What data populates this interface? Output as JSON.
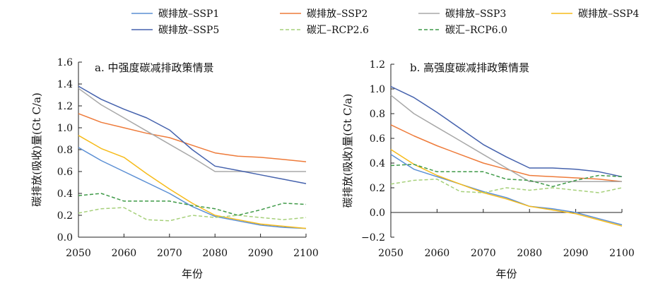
{
  "legend": [
    {
      "name": "碳排放–SSP1",
      "color": "#5b8fd4",
      "dash": false
    },
    {
      "name": "碳排放–SSP2",
      "color": "#ee7b3a",
      "dash": false
    },
    {
      "name": "碳排放–SSP3",
      "color": "#a8a8a8",
      "dash": false
    },
    {
      "name": "碳排放–SSP4",
      "color": "#f6bb1a",
      "dash": false
    },
    {
      "name": "碳排放–SSP5",
      "color": "#4562ad",
      "dash": false
    },
    {
      "name": "碳汇–RCP2.6",
      "color": "#a6d07a",
      "dash": true
    },
    {
      "name": "碳汇–RCP6.0",
      "color": "#3f9a48",
      "dash": true
    }
  ],
  "chart_data": [
    {
      "type": "line",
      "title": "a. 中强度碳减排政策情景",
      "xlabel": "年份",
      "ylabel": "碳排放(吸收)量(Gt C/a)",
      "xlim": [
        2050,
        2100
      ],
      "ylim": [
        0,
        1.6
      ],
      "xticks": [
        2050,
        2060,
        2070,
        2080,
        2090,
        2100
      ],
      "yticks": [
        "0.0",
        "0.2",
        "0.4",
        "0.6",
        "0.8",
        "1.0",
        "1.2",
        "1.4",
        "1.6"
      ],
      "series": [
        {
          "name": "碳排放–SSP1",
          "x": [
            2050,
            2055,
            2060,
            2065,
            2070,
            2075,
            2080,
            2085,
            2090,
            2095,
            2100
          ],
          "y": [
            0.82,
            0.7,
            0.6,
            0.5,
            0.4,
            0.28,
            0.19,
            0.15,
            0.11,
            0.09,
            0.08
          ]
        },
        {
          "name": "碳排放–SSP2",
          "x": [
            2050,
            2055,
            2060,
            2065,
            2070,
            2075,
            2080,
            2085,
            2090,
            2095,
            2100
          ],
          "y": [
            1.13,
            1.05,
            1.0,
            0.95,
            0.91,
            0.84,
            0.77,
            0.74,
            0.73,
            0.71,
            0.69
          ]
        },
        {
          "name": "碳排放–SSP3",
          "x": [
            2050,
            2055,
            2060,
            2065,
            2070,
            2075,
            2080,
            2085,
            2090,
            2095,
            2100
          ],
          "y": [
            1.36,
            1.21,
            1.09,
            0.97,
            0.85,
            0.73,
            0.6,
            0.6,
            0.6,
            0.6,
            0.6
          ]
        },
        {
          "name": "碳排放–SSP4",
          "x": [
            2050,
            2055,
            2060,
            2065,
            2070,
            2075,
            2080,
            2085,
            2090,
            2095,
            2100
          ],
          "y": [
            0.93,
            0.81,
            0.73,
            0.58,
            0.44,
            0.31,
            0.2,
            0.16,
            0.12,
            0.1,
            0.08
          ]
        },
        {
          "name": "碳排放–SSP5",
          "x": [
            2050,
            2055,
            2060,
            2065,
            2070,
            2075,
            2080,
            2085,
            2090,
            2095,
            2100
          ],
          "y": [
            1.38,
            1.26,
            1.17,
            1.09,
            0.98,
            0.8,
            0.65,
            0.61,
            0.57,
            0.53,
            0.49
          ]
        },
        {
          "name": "碳汇–RCP2.6",
          "x": [
            2050,
            2055,
            2060,
            2065,
            2070,
            2075,
            2080,
            2085,
            2090,
            2095,
            2100
          ],
          "y": [
            0.22,
            0.26,
            0.27,
            0.16,
            0.15,
            0.2,
            0.18,
            0.2,
            0.18,
            0.16,
            0.18
          ]
        },
        {
          "name": "碳汇–RCP6.0",
          "x": [
            2050,
            2055,
            2060,
            2065,
            2070,
            2075,
            2080,
            2085,
            2090,
            2095,
            2100
          ],
          "y": [
            0.38,
            0.4,
            0.33,
            0.33,
            0.33,
            0.29,
            0.26,
            0.2,
            0.25,
            0.31,
            0.3
          ]
        }
      ]
    },
    {
      "type": "line",
      "title": "b. 高强度碳减排政策情景",
      "xlabel": "年份",
      "ylabel": "碳排放(吸收)量(Gt C/a)",
      "xlim": [
        2050,
        2100
      ],
      "ylim": [
        -0.2,
        1.2
      ],
      "xticks": [
        2050,
        2060,
        2070,
        2080,
        2090,
        2100
      ],
      "yticks": [
        "−0.2",
        "0.0",
        "0.2",
        "0.4",
        "0.6",
        "0.8",
        "1.0",
        "1.2"
      ],
      "series": [
        {
          "name": "碳排放–SSP1",
          "x": [
            2050,
            2055,
            2060,
            2065,
            2070,
            2075,
            2080,
            2085,
            2090,
            2095,
            2100
          ],
          "y": [
            0.47,
            0.35,
            0.29,
            0.23,
            0.17,
            0.12,
            0.05,
            0.03,
            0.0,
            -0.05,
            -0.1
          ]
        },
        {
          "name": "碳排放–SSP2",
          "x": [
            2050,
            2055,
            2060,
            2065,
            2070,
            2075,
            2080,
            2085,
            2090,
            2095,
            2100
          ],
          "y": [
            0.71,
            0.62,
            0.54,
            0.47,
            0.4,
            0.35,
            0.3,
            0.29,
            0.28,
            0.27,
            0.25
          ]
        },
        {
          "name": "碳排放–SSP3",
          "x": [
            2050,
            2055,
            2060,
            2065,
            2070,
            2075,
            2080,
            2085,
            2090,
            2095,
            2100
          ],
          "y": [
            0.95,
            0.8,
            0.69,
            0.58,
            0.47,
            0.36,
            0.25,
            0.25,
            0.25,
            0.25,
            0.25
          ]
        },
        {
          "name": "碳排放–SSP4",
          "x": [
            2050,
            2055,
            2060,
            2065,
            2070,
            2075,
            2080,
            2085,
            2090,
            2095,
            2100
          ],
          "y": [
            0.51,
            0.39,
            0.3,
            0.23,
            0.16,
            0.11,
            0.05,
            0.02,
            -0.01,
            -0.06,
            -0.11
          ]
        },
        {
          "name": "碳排放–SSP5",
          "x": [
            2050,
            2055,
            2060,
            2065,
            2070,
            2075,
            2080,
            2085,
            2090,
            2095,
            2100
          ],
          "y": [
            1.02,
            0.93,
            0.81,
            0.68,
            0.55,
            0.45,
            0.36,
            0.36,
            0.35,
            0.33,
            0.29
          ]
        },
        {
          "name": "碳汇–RCP2.6",
          "x": [
            2050,
            2055,
            2060,
            2065,
            2070,
            2075,
            2080,
            2085,
            2090,
            2095,
            2100
          ],
          "y": [
            0.23,
            0.26,
            0.27,
            0.17,
            0.16,
            0.2,
            0.18,
            0.2,
            0.18,
            0.16,
            0.2
          ]
        },
        {
          "name": "碳汇–RCP6.0",
          "x": [
            2050,
            2055,
            2060,
            2065,
            2070,
            2075,
            2080,
            2085,
            2090,
            2095,
            2100
          ],
          "y": [
            0.38,
            0.39,
            0.33,
            0.33,
            0.33,
            0.27,
            0.26,
            0.21,
            0.26,
            0.3,
            0.29
          ]
        }
      ]
    }
  ]
}
